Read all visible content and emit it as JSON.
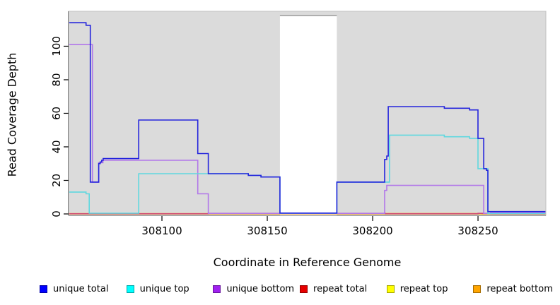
{
  "chart_data": {
    "type": "line",
    "subtype": "step-coverage",
    "title": "",
    "xlabel": "Coordinate in Reference Genome",
    "ylabel": "Read Coverage Depth",
    "xlim": [
      308055.7,
      308282.2
    ],
    "ylim": [
      0,
      120.4
    ],
    "x_ticks": [
      308100,
      308150,
      308200,
      308250
    ],
    "y_ticks": [
      0,
      20,
      40,
      60,
      80,
      100
    ],
    "grid": false,
    "plot_background": "#DBDBDB",
    "plot_border": "#C0C0C0",
    "gap_region": {
      "x_start": 308156,
      "x_end": 308183,
      "fill": "#FFFFFF",
      "top_border": "#999999"
    },
    "legend_position": "bottom",
    "series": [
      {
        "name": "repeat top",
        "color": "#F0E800",
        "steps": [
          [
            308056,
            308282,
            0.05
          ]
        ]
      },
      {
        "name": "repeat bottom",
        "color": "#FF9D1E",
        "steps": [
          [
            308056,
            308122,
            0.2
          ],
          [
            308122,
            308206,
            0.1
          ],
          [
            308206,
            308252,
            0.25
          ],
          [
            308252,
            308282,
            0.05
          ]
        ]
      },
      {
        "name": "repeat total",
        "color": "#D14B74",
        "steps": [
          [
            308056,
            308122,
            0.1
          ],
          [
            308122,
            308206,
            0.35
          ],
          [
            308206,
            308250,
            0.1
          ],
          [
            308250,
            308256,
            0.35
          ],
          [
            308256,
            308282,
            0.1
          ]
        ]
      },
      {
        "name": "unique bottom",
        "color": "#B277E9",
        "steps": [
          [
            308056,
            308067,
            101
          ],
          [
            308067,
            308070,
            19
          ],
          [
            308070,
            308072,
            30.5
          ],
          [
            308072,
            308117,
            32
          ],
          [
            308117,
            308122,
            12
          ],
          [
            308122,
            308205.7,
            0.3
          ],
          [
            308205.7,
            308206.7,
            14
          ],
          [
            308206.7,
            308252.7,
            17
          ],
          [
            308252.7,
            308256,
            0.3
          ],
          [
            308256,
            308282,
            0.8
          ]
        ]
      },
      {
        "name": "unique top",
        "color": "#5FD8DF",
        "steps": [
          [
            308056,
            308064,
            13
          ],
          [
            308064,
            308065.5,
            12
          ],
          [
            308065.5,
            308089,
            0.4
          ],
          [
            308089,
            308141,
            24
          ],
          [
            308141,
            308147,
            23
          ],
          [
            308147,
            308156,
            22
          ],
          [
            308156,
            308183,
            0.4
          ],
          [
            308183,
            308208,
            19
          ],
          [
            308208,
            308234,
            47
          ],
          [
            308234,
            308246,
            46
          ],
          [
            308246,
            308250,
            45
          ],
          [
            308250,
            308254.7,
            27
          ],
          [
            308254.7,
            308282,
            0.2
          ]
        ]
      },
      {
        "name": "unique total",
        "color": "#2424DC",
        "steps": [
          [
            308056,
            308064,
            114
          ],
          [
            308064,
            308066,
            112.5
          ],
          [
            308066,
            308070,
            19
          ],
          [
            308070,
            308070.7,
            30
          ],
          [
            308070.7,
            308071.4,
            31
          ],
          [
            308071.4,
            308072.1,
            32
          ],
          [
            308072.1,
            308089,
            33
          ],
          [
            308089,
            308117,
            56
          ],
          [
            308117,
            308122,
            36
          ],
          [
            308122,
            308141,
            24
          ],
          [
            308141,
            308147,
            23
          ],
          [
            308147,
            308156,
            22
          ],
          [
            308156,
            308183,
            0.5
          ],
          [
            308183,
            308205.7,
            19
          ],
          [
            308205.7,
            308206.7,
            32.5
          ],
          [
            308206.7,
            308207.4,
            34.5
          ],
          [
            308207.4,
            308234,
            64
          ],
          [
            308234,
            308246,
            63
          ],
          [
            308246,
            308250,
            62
          ],
          [
            308250,
            308252.7,
            45
          ],
          [
            308252.7,
            308254,
            27
          ],
          [
            308254,
            308254.7,
            26
          ],
          [
            308254.7,
            308282,
            1.4
          ]
        ]
      }
    ],
    "legend": [
      {
        "label": "unique total",
        "color": "#0000FF"
      },
      {
        "label": "unique top",
        "color": "#00FFFF"
      },
      {
        "label": "unique bottom",
        "color": "#A020F0"
      },
      {
        "label": "repeat total",
        "color": "#E60000"
      },
      {
        "label": "repeat top",
        "color": "#FFFF00"
      },
      {
        "label": "repeat bottom",
        "color": "#FFA500"
      }
    ]
  }
}
